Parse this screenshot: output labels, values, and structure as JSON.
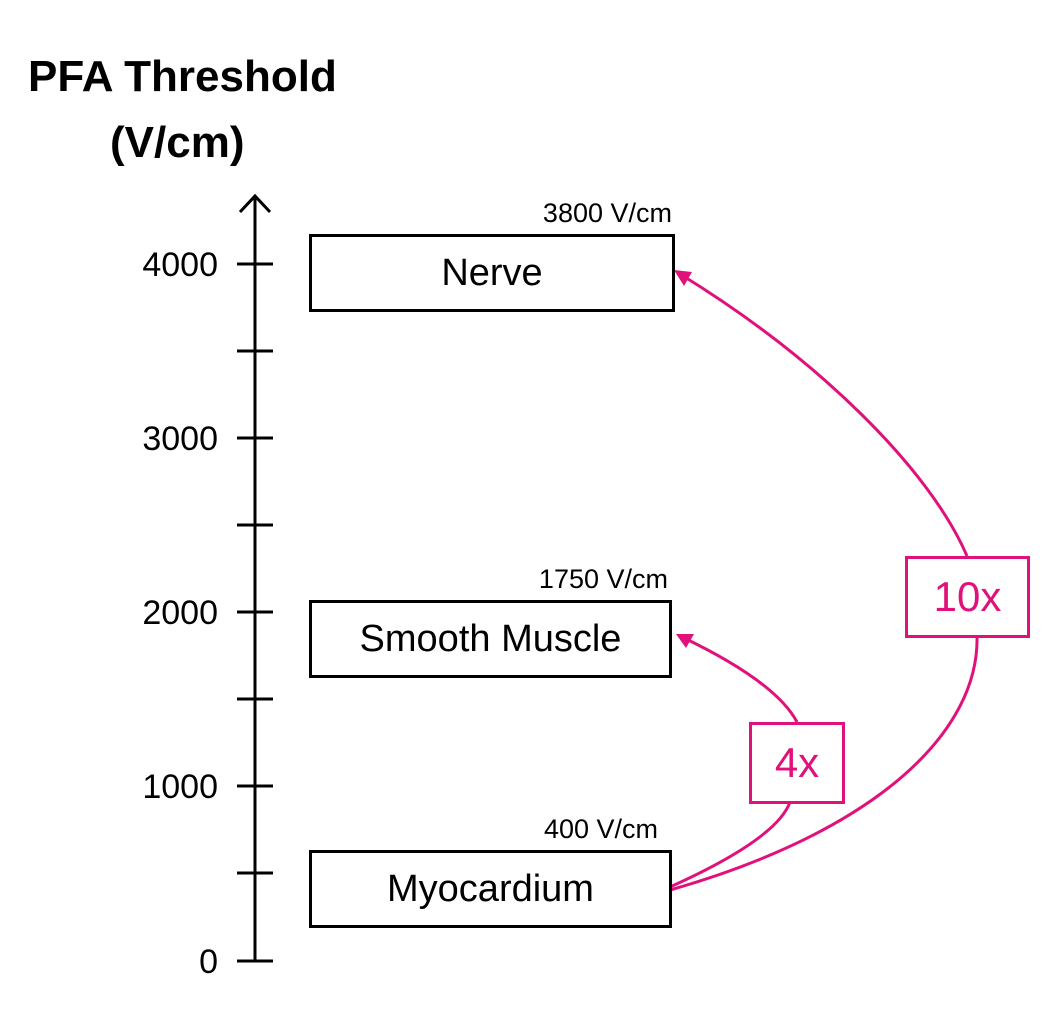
{
  "title": {
    "line1": "PFA Threshold",
    "line2": "(V/cm)"
  },
  "axis": {
    "ticks": [
      "4000",
      "3000",
      "2000",
      "1000",
      "0"
    ]
  },
  "tissues": [
    {
      "name": "Nerve",
      "threshold_label": "3800 V/cm",
      "threshold": 3800
    },
    {
      "name": "Smooth Muscle",
      "threshold_label": "1750 V/cm",
      "threshold": 1750
    },
    {
      "name": "Myocardium",
      "threshold_label": "400 V/cm",
      "threshold": 400
    }
  ],
  "ratios": {
    "nerve": "10x",
    "smooth_muscle": "4x"
  },
  "colors": {
    "accent": "#e0117a",
    "line": "#000000"
  }
}
